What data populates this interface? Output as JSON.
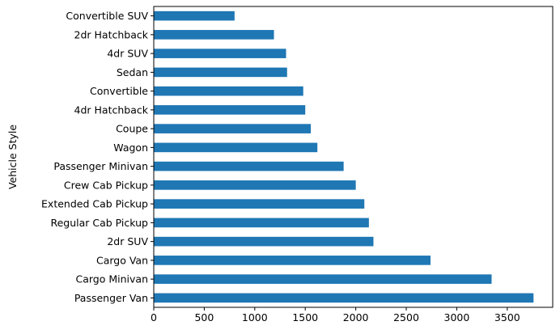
{
  "chart_data": {
    "type": "bar",
    "orientation": "horizontal",
    "title": "",
    "xlabel": "",
    "ylabel": "Vehicle Style",
    "categories": [
      "Passenger Van",
      "Cargo Minivan",
      "Cargo Van",
      "2dr SUV",
      "Regular Cab Pickup",
      "Extended Cab Pickup",
      "Crew Cab Pickup",
      "Passenger Minivan",
      "Wagon",
      "Coupe",
      "4dr Hatchback",
      "Convertible",
      "Sedan",
      "4dr SUV",
      "2dr Hatchback",
      "Convertible SUV"
    ],
    "values": [
      3760,
      3345,
      2740,
      2175,
      2130,
      2085,
      2000,
      1880,
      1620,
      1555,
      1500,
      1480,
      1320,
      1310,
      1190,
      800
    ],
    "xlim": [
      0,
      3950
    ],
    "xticks": [
      0,
      500,
      1000,
      1500,
      2000,
      2500,
      3000,
      3500
    ],
    "bar_color": "#1f77b4",
    "grid": false,
    "legend": "none"
  }
}
